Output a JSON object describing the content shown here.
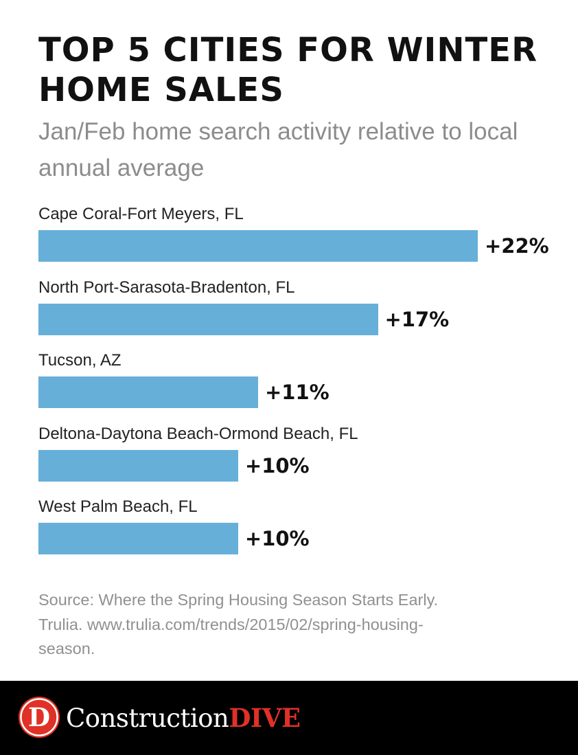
{
  "header": {
    "title": "TOP 5 CITIES FOR WINTER HOME SALES",
    "subtitle": "Jan/Feb home search activity relative to local annual average"
  },
  "chart_data": {
    "type": "bar",
    "orientation": "horizontal",
    "title": "TOP 5 CITIES FOR WINTER HOME SALES",
    "subtitle": "Jan/Feb home search activity relative to local annual average",
    "categories": [
      "Cape Coral-Fort Meyers, FL",
      "North Port-Sarasota-Bradenton, FL",
      "Tucson, AZ",
      "Deltona-Daytona Beach-Ormond Beach, FL",
      "West Palm Beach, FL"
    ],
    "values": [
      22,
      17,
      11,
      10,
      10
    ],
    "value_labels": [
      "+22%",
      "+17%",
      "+11%",
      "+10%",
      "+10%"
    ],
    "unit": "%",
    "bar_color": "#66afd9",
    "xlim": [
      0,
      22
    ],
    "grid": false,
    "legend": "none"
  },
  "source": {
    "lines": [
      "Source: Where the Spring Housing Season Starts Early.",
      "Trulia. www.trulia.com/trends/2015/02/spring-housing-",
      "season."
    ]
  },
  "footer": {
    "logo_letter": "D",
    "brand_word1": "Construction",
    "brand_word2": "DIVE",
    "brand_color": "#e03127",
    "background": "#000000"
  }
}
